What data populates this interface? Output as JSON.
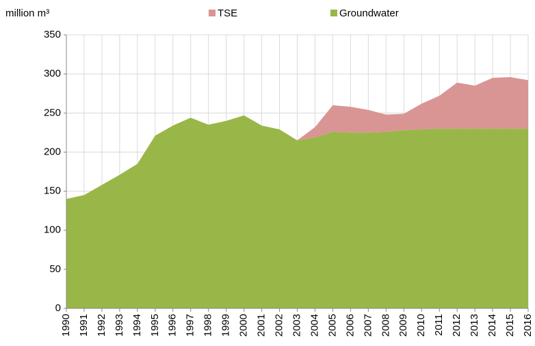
{
  "chart_data": {
    "type": "stacked_area",
    "y_axis_label": "million m³",
    "x": [
      1990,
      1991,
      1992,
      1993,
      1994,
      1995,
      1996,
      1997,
      1998,
      1999,
      2000,
      2001,
      2002,
      2003,
      2004,
      2005,
      2006,
      2007,
      2008,
      2009,
      2010,
      2011,
      2012,
      2013,
      2014,
      2015,
      2016
    ],
    "xlim": [
      1990,
      2016
    ],
    "xticks": [
      1990,
      1991,
      1992,
      1993,
      1994,
      1995,
      1996,
      1997,
      1998,
      1999,
      2000,
      2001,
      2002,
      2003,
      2004,
      2005,
      2006,
      2007,
      2008,
      2009,
      2010,
      2011,
      2012,
      2013,
      2014,
      2015,
      2016
    ],
    "ylim": [
      0,
      350
    ],
    "yticks": [
      0,
      50,
      100,
      150,
      200,
      250,
      300,
      350
    ],
    "grid": true,
    "legend": "top",
    "series": [
      {
        "name": "Groundwater",
        "color": "#99b748",
        "values": [
          140,
          145,
          158,
          171,
          185,
          221,
          234,
          244,
          235,
          240,
          247,
          234,
          229,
          215,
          219,
          226,
          225,
          225,
          226,
          228,
          229,
          230,
          230,
          230,
          230,
          230,
          230
        ]
      },
      {
        "name": "TSE",
        "color": "#d99594",
        "values": [
          0,
          0,
          0,
          0,
          0,
          0,
          0,
          0,
          0,
          0,
          0,
          0,
          0,
          0,
          13,
          34,
          33,
          29,
          22,
          21,
          33,
          42,
          59,
          55,
          65,
          66,
          62
        ]
      }
    ]
  }
}
